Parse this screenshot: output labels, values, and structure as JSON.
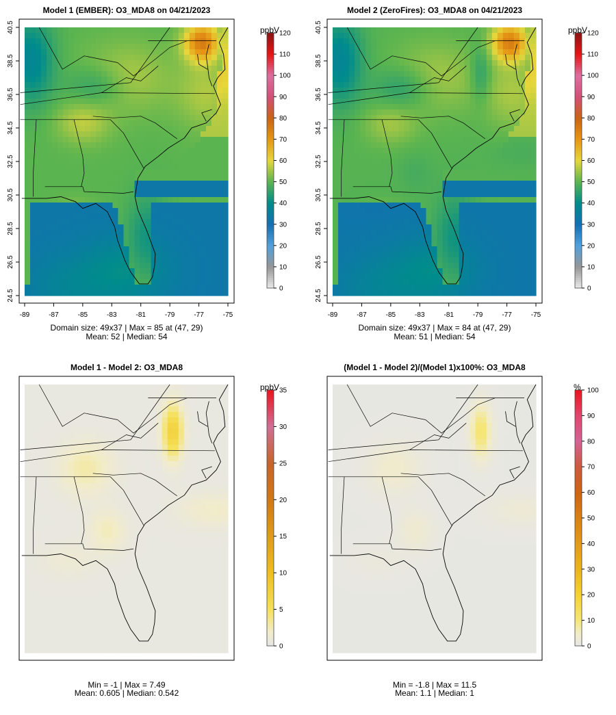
{
  "panels": [
    {
      "title": "Model 1 (EMBER): O3_MDA8 on 04/21/2023",
      "stats_line1": "Domain size: 49x37 | Max = 85 at (47, 29)",
      "stats_line2": "Mean: 52 |  Median: 54",
      "colorbar_unit": "ppbV"
    },
    {
      "title": "Model 2 (ZeroFires): O3_MDA8 on 04/21/2023",
      "stats_line1": "Domain size: 49x37 | Max = 84 at (47, 29)",
      "stats_line2": "Mean: 51 |  Median: 54",
      "colorbar_unit": "ppbV"
    },
    {
      "title": "Model 1 - Model 2: O3_MDA8",
      "stats_line1": "Min = -1 | Max = 7.49",
      "stats_line2": "Mean: 0.605 |  Median: 0.542",
      "colorbar_unit": "ppbV"
    },
    {
      "title": "(Model 1 - Model 2)/(Model 1)x100%: O3_MDA8",
      "stats_line1": "Min = -1.8 | Max = 11.5",
      "stats_line2": "Mean: 1.1 |  Median: 1",
      "colorbar_unit": "%"
    }
  ],
  "chart_data": [
    {
      "type": "heatmap",
      "title": "Model 1 (EMBER): O3_MDA8 on 04/21/2023",
      "grid": "49x37",
      "x_ticks": [
        "-89",
        "-87",
        "-85",
        "-83",
        "-81",
        "-79",
        "-77",
        "-75"
      ],
      "y_ticks": [
        "24.5",
        "26.5",
        "28.5",
        "30.5",
        "32.5",
        "34.5",
        "36.5",
        "38.5",
        "40.5"
      ],
      "colorbar": {
        "unit": "ppbV",
        "ticks": [
          0,
          10,
          20,
          30,
          40,
          50,
          60,
          70,
          80,
          90,
          100,
          110,
          120
        ]
      },
      "max": 85,
      "max_location": [
        47,
        29
      ],
      "mean": 52,
      "median": 54
    },
    {
      "type": "heatmap",
      "title": "Model 2 (ZeroFires): O3_MDA8 on 04/21/2023",
      "grid": "49x37",
      "x_ticks": [
        "-89",
        "-87",
        "-85",
        "-83",
        "-81",
        "-79",
        "-77",
        "-75"
      ],
      "y_ticks": [
        "24.5",
        "26.5",
        "28.5",
        "30.5",
        "32.5",
        "34.5",
        "36.5",
        "38.5",
        "40.5"
      ],
      "colorbar": {
        "unit": "ppbV",
        "ticks": [
          0,
          10,
          20,
          30,
          40,
          50,
          60,
          70,
          80,
          90,
          100,
          110,
          120
        ]
      },
      "max": 84,
      "max_location": [
        47,
        29
      ],
      "mean": 51,
      "median": 54
    },
    {
      "type": "heatmap",
      "title": "Model 1 - Model 2: O3_MDA8",
      "colorbar": {
        "unit": "ppbV",
        "ticks": [
          0,
          5,
          10,
          15,
          20,
          25,
          30,
          35
        ]
      },
      "min": -1,
      "max": 7.49,
      "mean": 0.605,
      "median": 0.542
    },
    {
      "type": "heatmap",
      "title": "(Model 1 - Model 2)/(Model 1)x100%: O3_MDA8",
      "colorbar": {
        "unit": "%",
        "ticks": [
          0,
          10,
          20,
          30,
          40,
          50,
          60,
          70,
          80,
          90,
          100
        ]
      },
      "min": -1.8,
      "max": 11.5,
      "mean": 1.1,
      "median": 1
    }
  ]
}
